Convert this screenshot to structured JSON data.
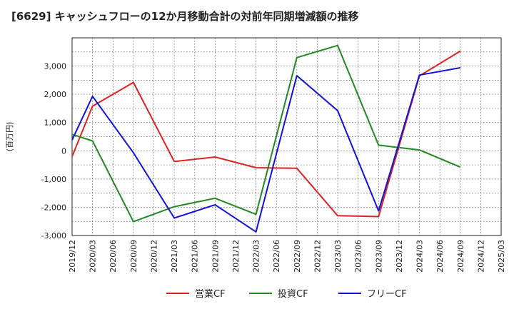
{
  "chart_data": {
    "type": "line",
    "title": "[6629]  キャッシュフローの12か月移動合計の対前年同期増減額の推移",
    "ylabel": "(百万円)",
    "xlabel": "",
    "ylim": [
      -3000,
      4000
    ],
    "yticks": [
      -3000,
      -2000,
      -1000,
      0,
      1000,
      2000,
      3000
    ],
    "ytick_labels": [
      "-3,000",
      "-2,000",
      "-1,000",
      "0",
      "1,000",
      "2,000",
      "3,000"
    ],
    "categories": [
      "2019/12",
      "2020/03",
      "2020/06",
      "2020/09",
      "2020/12",
      "2021/03",
      "2021/06",
      "2021/09",
      "2021/12",
      "2022/03",
      "2022/06",
      "2022/09",
      "2022/12",
      "2023/03",
      "2023/06",
      "2023/09",
      "2023/12",
      "2024/03",
      "2024/06",
      "2024/09",
      "2024/12",
      "2025/03"
    ],
    "series": [
      {
        "name": "営業CF",
        "color": "#dd2222",
        "values": [
          -200,
          1580,
          null,
          2420,
          null,
          -380,
          null,
          -220,
          null,
          -600,
          null,
          -620,
          null,
          -2300,
          null,
          -2330,
          null,
          2650,
          null,
          3530,
          null,
          null
        ]
      },
      {
        "name": "投資CF",
        "color": "#228822",
        "values": [
          580,
          350,
          null,
          -2510,
          null,
          -1980,
          null,
          -1680,
          null,
          -2250,
          null,
          3300,
          null,
          3730,
          null,
          200,
          null,
          30,
          null,
          -580,
          null,
          null
        ]
      },
      {
        "name": "フリーCF",
        "color": "#1111dd",
        "values": [
          380,
          1930,
          null,
          -70,
          null,
          -2380,
          null,
          -1910,
          null,
          -2870,
          null,
          2660,
          null,
          1420,
          null,
          -2130,
          null,
          2680,
          null,
          2940,
          null,
          null
        ]
      }
    ],
    "grid": true,
    "legend_position": "bottom"
  }
}
